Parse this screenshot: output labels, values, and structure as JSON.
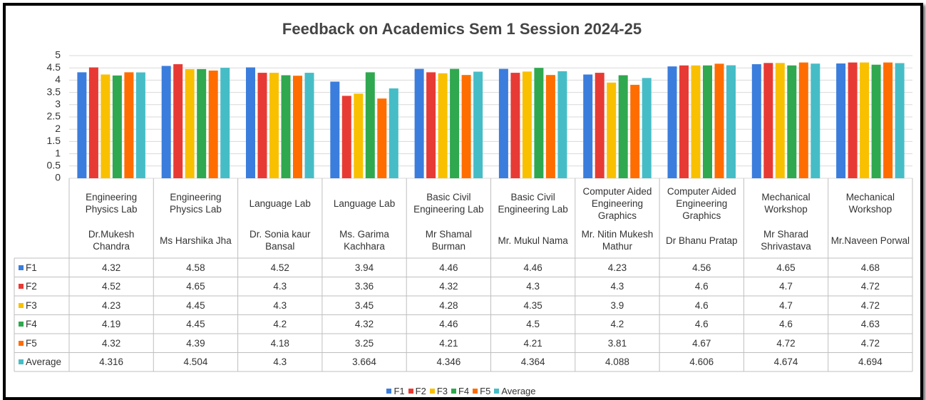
{
  "chart_data": {
    "type": "bar",
    "title": "Feedback on Academics Sem 1 Session 2024-25",
    "categories": [
      [
        "Engineering Physics Lab",
        "Dr.Mukesh Chandra"
      ],
      [
        "Engineering Physics Lab",
        "Ms Harshika Jha"
      ],
      [
        "Language Lab",
        "Dr. Sonia kaur Bansal"
      ],
      [
        "Language Lab",
        "Ms. Garima Kachhara"
      ],
      [
        "Basic Civil Engineering Lab",
        "Mr Shamal Burman"
      ],
      [
        "Basic Civil Engineering Lab",
        "Mr. Mukul Nama"
      ],
      [
        "Computer Aided Engineering Graphics",
        "Mr. Nitin Mukesh Mathur"
      ],
      [
        "Computer Aided Engineering Graphics",
        "Dr Bhanu Pratap"
      ],
      [
        "Mechanical Workshop",
        "Mr Sharad Shrivastava"
      ],
      [
        "Mechanical Workshop",
        "Mr.Naveen Porwal"
      ]
    ],
    "series": [
      {
        "name": "F1",
        "color": "#3b7ddd",
        "values": [
          4.32,
          4.58,
          4.52,
          3.94,
          4.46,
          4.46,
          4.23,
          4.56,
          4.65,
          4.68
        ]
      },
      {
        "name": "F2",
        "color": "#e83a34",
        "values": [
          4.52,
          4.65,
          4.3,
          3.36,
          4.32,
          4.3,
          4.3,
          4.6,
          4.7,
          4.72
        ]
      },
      {
        "name": "F3",
        "color": "#f9c000",
        "values": [
          4.23,
          4.45,
          4.3,
          3.45,
          4.28,
          4.35,
          3.9,
          4.6,
          4.7,
          4.72
        ]
      },
      {
        "name": "F4",
        "color": "#2fa84f",
        "values": [
          4.19,
          4.45,
          4.2,
          4.32,
          4.46,
          4.5,
          4.2,
          4.6,
          4.6,
          4.63
        ]
      },
      {
        "name": "F5",
        "color": "#ff6d00",
        "values": [
          4.32,
          4.39,
          4.18,
          3.25,
          4.21,
          4.21,
          3.81,
          4.67,
          4.72,
          4.72
        ]
      },
      {
        "name": "Average",
        "color": "#46bdc6",
        "values": [
          4.316,
          4.504,
          4.3,
          3.664,
          4.346,
          4.364,
          4.088,
          4.606,
          4.674,
          4.694
        ]
      }
    ],
    "ylim": [
      0,
      5
    ],
    "yticks": [
      0,
      0.5,
      1,
      1.5,
      2,
      2.5,
      3,
      3.5,
      4,
      4.5,
      5
    ],
    "grid": true,
    "legend": "bottom",
    "data_table": true
  }
}
